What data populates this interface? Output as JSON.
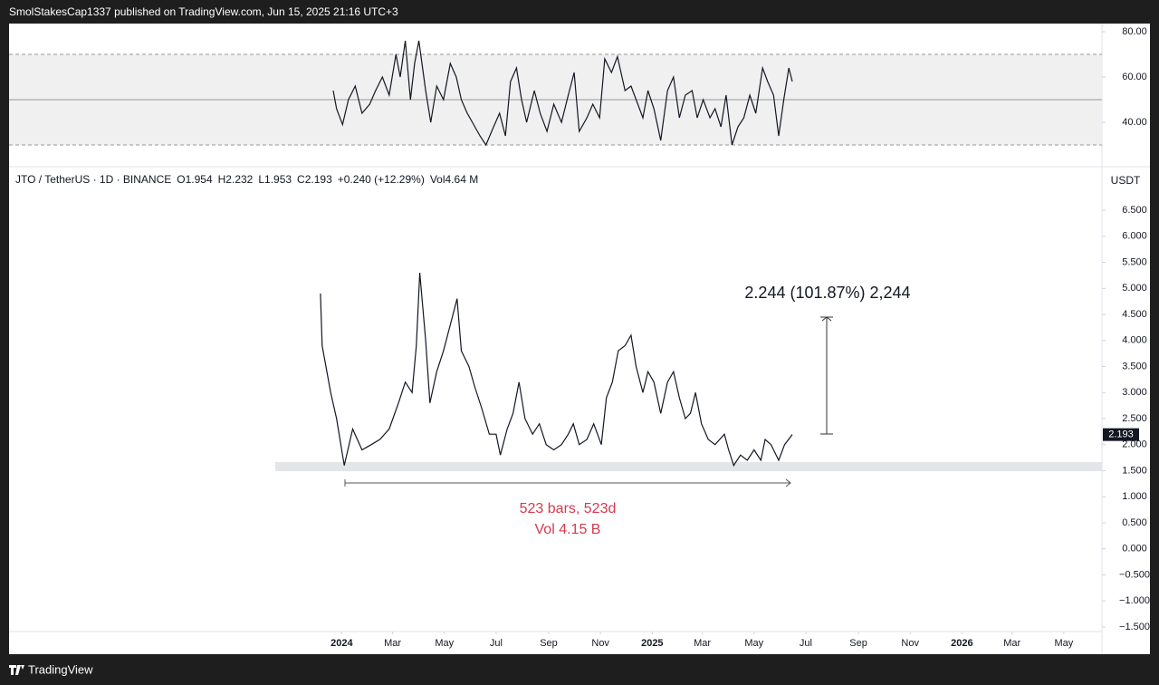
{
  "header": {
    "publisher": "SmolStakesCap1337 published on TradingView.com, Jun 15, 2025 21:16 UTC+3"
  },
  "footer": {
    "brand": "TradingView"
  },
  "chart_data": [
    {
      "type": "line",
      "color": "#131722",
      "x": [
        15,
        19,
        26,
        33,
        41,
        49,
        58,
        65,
        73,
        81,
        89,
        94,
        100,
        106,
        111,
        116,
        124,
        130,
        137,
        145,
        153,
        160,
        166,
        173,
        179,
        188,
        195,
        204,
        211,
        218,
        224,
        231,
        237,
        243,
        252,
        259,
        267,
        275,
        284,
        292,
        299,
        305,
        314,
        321,
        329,
        335,
        343,
        350,
        359,
        366,
        374,
        380,
        386,
        393,
        401,
        409,
        416,
        423,
        430,
        438,
        444,
        451,
        459,
        465,
        472,
        478,
        485,
        492,
        499,
        506,
        513,
        521,
        527,
        534,
        540,
        546,
        552,
        556
      ],
      "values": [
        54,
        46,
        39,
        50,
        56,
        44,
        48,
        54,
        60,
        52,
        70,
        60,
        76,
        50,
        66,
        76,
        54,
        40,
        56,
        50,
        66,
        60,
        50,
        44,
        40,
        34,
        30,
        38,
        44,
        34,
        58,
        64,
        50,
        40,
        54,
        44,
        36,
        48,
        40,
        52,
        62,
        36,
        42,
        48,
        42,
        68,
        62,
        69,
        54,
        56,
        48,
        42,
        54,
        46,
        32,
        54,
        60,
        42,
        52,
        54,
        42,
        50,
        42,
        46,
        38,
        52,
        30,
        38,
        42,
        52,
        44,
        64,
        58,
        52,
        34,
        50,
        64,
        58
      ],
      "xlim": [
        -367,
        921
      ],
      "ylim": [
        22,
        83.6
      ],
      "yticks": [
        {
          "value": 80,
          "label": "80.00"
        },
        {
          "value": 60,
          "label": "60.00"
        },
        {
          "value": 40,
          "label": "40.00"
        }
      ],
      "levels": [
        70,
        50,
        30
      ]
    },
    {
      "type": "line",
      "color": "#131722",
      "symbol": "JTO / TetherUS · 1D · BINANCE",
      "ohlc": [
        "O1.954",
        "H2.232",
        "L1.953",
        "C2.193"
      ],
      "change": "+0.240 (+12.29%)",
      "volume": "Vol4.64 M",
      "currency": "USDT",
      "last_price": 2.193,
      "annotations": [
        "2.244 (101.87%) 2,244",
        "523 bars, 523d",
        "Vol 4.15 B"
      ],
      "x": [
        0,
        2,
        12,
        19,
        28,
        38,
        49,
        60,
        70,
        81,
        92,
        100,
        108,
        113,
        117,
        124,
        129,
        137,
        145,
        153,
        161,
        166,
        175,
        182,
        190,
        199,
        207,
        212,
        220,
        227,
        234,
        241,
        250,
        258,
        266,
        275,
        284,
        292,
        298,
        305,
        314,
        322,
        331,
        337,
        344,
        351,
        359,
        366,
        372,
        380,
        386,
        393,
        401,
        409,
        416,
        423,
        430,
        436,
        442,
        449,
        457,
        465,
        476,
        481,
        487,
        495,
        503,
        511,
        519,
        524,
        531,
        540,
        547,
        556
      ],
      "values": [
        4.9,
        3.9,
        3.0,
        2.5,
        1.6,
        2.3,
        1.9,
        2.0,
        2.1,
        2.3,
        2.8,
        3.2,
        3.0,
        3.9,
        5.3,
        4.0,
        2.8,
        3.4,
        3.8,
        4.3,
        4.8,
        3.8,
        3.5,
        3.1,
        2.7,
        2.2,
        2.2,
        1.8,
        2.3,
        2.6,
        3.2,
        2.5,
        2.2,
        2.4,
        2.0,
        1.9,
        2.0,
        2.2,
        2.4,
        2.0,
        2.1,
        2.4,
        2.0,
        2.9,
        3.2,
        3.8,
        3.9,
        4.1,
        3.5,
        3.0,
        3.4,
        3.2,
        2.6,
        3.2,
        3.4,
        2.9,
        2.5,
        2.6,
        3.0,
        2.4,
        2.1,
        2.0,
        2.2,
        1.9,
        1.6,
        1.8,
        1.7,
        1.9,
        1.7,
        2.1,
        2.0,
        1.7,
        2.0,
        2.193
      ],
      "xlim": [
        -367,
        921
      ],
      "ylim": [
        -1.587,
        7.265
      ],
      "xticks": [
        {
          "value": 25,
          "label": "2024"
        },
        {
          "value": 85,
          "label": "Mar"
        },
        {
          "value": 146,
          "label": "May"
        },
        {
          "value": 207,
          "label": "Jul"
        },
        {
          "value": 269,
          "label": "Sep"
        },
        {
          "value": 330,
          "label": "Nov"
        },
        {
          "value": 391,
          "label": "2025"
        },
        {
          "value": 450,
          "label": "Mar"
        },
        {
          "value": 511,
          "label": "May"
        },
        {
          "value": 572,
          "label": "Jul"
        },
        {
          "value": 634,
          "label": "Sep"
        },
        {
          "value": 695,
          "label": "Nov"
        },
        {
          "value": 756,
          "label": "2026"
        },
        {
          "value": 815,
          "label": "Mar"
        },
        {
          "value": 876,
          "label": "May"
        }
      ],
      "yticks": [
        {
          "value": 6.5,
          "label": "6.500"
        },
        {
          "value": 6,
          "label": "6.000"
        },
        {
          "value": 5.5,
          "label": "5.500"
        },
        {
          "value": 5,
          "label": "5.000"
        },
        {
          "value": 4.5,
          "label": "4.500"
        },
        {
          "value": 4,
          "label": "4.000"
        },
        {
          "value": 3.5,
          "label": "3.500"
        },
        {
          "value": 3,
          "label": "3.000"
        },
        {
          "value": 2.5,
          "label": "2.500"
        },
        {
          "value": 2,
          "label": "2.000"
        },
        {
          "value": 1.5,
          "label": "1.500"
        },
        {
          "value": 1,
          "label": "1.000"
        },
        {
          "value": 0.5,
          "label": "0.500"
        },
        {
          "value": 0,
          "label": "0.000"
        },
        {
          "value": -0.5,
          "label": "−0.500"
        },
        {
          "value": -1,
          "label": "−1.000"
        },
        {
          "value": -1.5,
          "label": "−1.500"
        }
      ]
    }
  ]
}
